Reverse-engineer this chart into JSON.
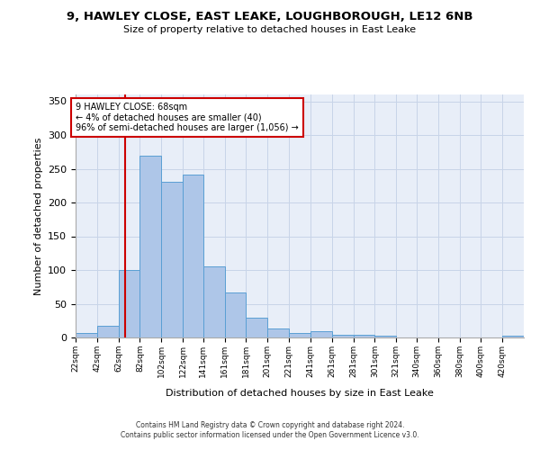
{
  "title": "9, HAWLEY CLOSE, EAST LEAKE, LOUGHBOROUGH, LE12 6NB",
  "subtitle": "Size of property relative to detached houses in East Leake",
  "xlabel": "Distribution of detached houses by size in East Leake",
  "ylabel": "Number of detached properties",
  "bar_color": "#aec6e8",
  "bar_edge_color": "#5a9fd4",
  "grid_color": "#c8d4e8",
  "bg_color": "#e8eef8",
  "annotation_box_text": "9 HAWLEY CLOSE: 68sqm\n← 4% of detached houses are smaller (40)\n96% of semi-detached houses are larger (1,056) →",
  "annotation_box_color": "#cc0000",
  "vline_x": 68,
  "vline_color": "#cc0000",
  "bins": [
    22,
    42,
    62,
    82,
    102,
    122,
    141,
    161,
    181,
    201,
    221,
    241,
    261,
    281,
    301,
    321,
    340,
    360,
    380,
    400,
    420,
    440
  ],
  "bin_labels": [
    "22sqm",
    "42sqm",
    "62sqm",
    "82sqm",
    "102sqm",
    "122sqm",
    "141sqm",
    "161sqm",
    "181sqm",
    "201sqm",
    "221sqm",
    "241sqm",
    "261sqm",
    "281sqm",
    "301sqm",
    "321sqm",
    "340sqm",
    "360sqm",
    "380sqm",
    "400sqm",
    "420sqm"
  ],
  "bar_heights": [
    7,
    18,
    100,
    270,
    231,
    242,
    105,
    67,
    30,
    14,
    7,
    10,
    4,
    4,
    3,
    0,
    0,
    0,
    0,
    0,
    3
  ],
  "ylim": [
    0,
    360
  ],
  "yticks": [
    0,
    50,
    100,
    150,
    200,
    250,
    300,
    350
  ],
  "footer_line1": "Contains HM Land Registry data © Crown copyright and database right 2024.",
  "footer_line2": "Contains public sector information licensed under the Open Government Licence v3.0."
}
